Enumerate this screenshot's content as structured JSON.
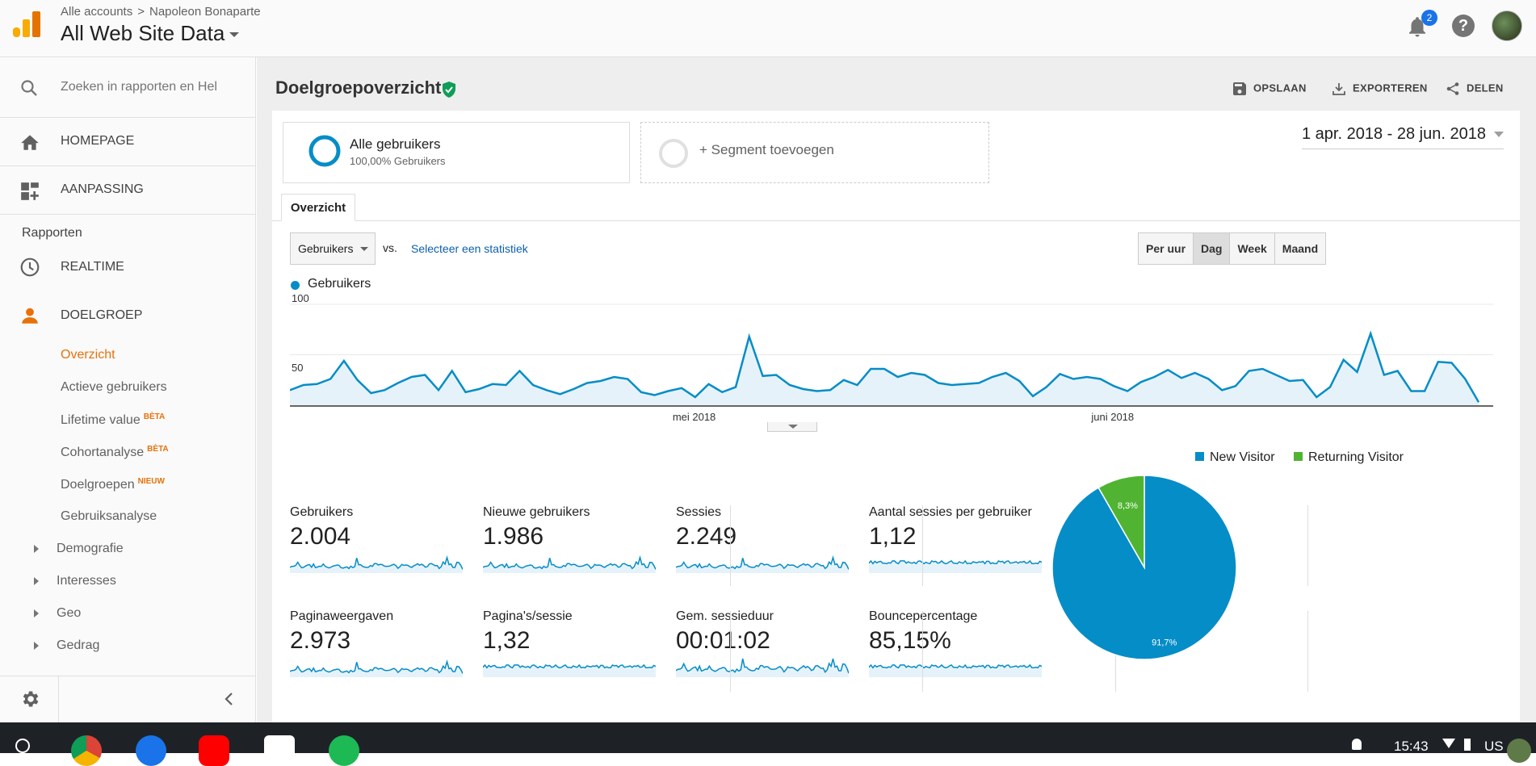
{
  "header": {
    "breadcrumb_accounts": "Alle accounts",
    "breadcrumb_separator": ">",
    "breadcrumb_property": "Napoleon Bonaparte",
    "view_name": "All Web Site Data",
    "notifications_count": "2"
  },
  "sidebar": {
    "search_placeholder": "Zoeken in rapporten en Hel",
    "homepage": "HOMEPAGE",
    "customization": "AANPASSING",
    "reports_label": "Rapporten",
    "realtime": "REALTIME",
    "audience": "DOELGROEP",
    "audience_items": [
      {
        "label": "Overzicht",
        "badge": ""
      },
      {
        "label": "Actieve gebruikers",
        "badge": ""
      },
      {
        "label": "Lifetime value",
        "badge": "BÈTA"
      },
      {
        "label": "Cohortanalyse",
        "badge": "BÈTA"
      },
      {
        "label": "Doelgroepen",
        "badge": "NIEUW"
      },
      {
        "label": "Gebruiksanalyse",
        "badge": ""
      }
    ],
    "expandable_items": [
      "Demografie",
      "Interesses",
      "Geo",
      "Gedrag"
    ]
  },
  "page": {
    "title": "Doelgroepoverzicht",
    "save": "OPSLAAN",
    "export": "EXPORTEREN",
    "share": "DELEN",
    "segment_name": "Alle gebruikers",
    "segment_share": "100,00% Gebruikers",
    "add_segment": "+ Segment toevoegen",
    "date_range": "1 apr. 2018 - 28 jun. 2018",
    "tab_overview": "Overzicht",
    "metric_select": "Gebruikers",
    "vs": "vs.",
    "select_statistic": "Selecteer een statistiek",
    "granularity": [
      "Per uur",
      "Dag",
      "Week",
      "Maand"
    ],
    "granularity_selected": "Dag"
  },
  "chart_data": {
    "type": "area",
    "series": [
      {
        "name": "Gebruikers",
        "color": "#058dc7",
        "values": [
          15,
          20,
          21,
          26,
          44,
          25,
          12,
          15,
          22,
          28,
          30,
          15,
          34,
          13,
          16,
          21,
          20,
          34,
          20,
          15,
          11,
          16,
          22,
          24,
          28,
          26,
          13,
          10,
          14,
          17,
          8,
          21,
          13,
          18,
          68,
          29,
          30,
          20,
          16,
          14,
          15,
          25,
          20,
          36,
          36,
          28,
          32,
          30,
          22,
          20,
          21,
          22,
          28,
          32,
          24,
          9,
          18,
          31,
          26,
          28,
          26,
          19,
          14,
          23,
          28,
          35,
          27,
          32,
          26,
          15,
          19,
          34,
          36,
          30,
          24,
          25,
          8,
          18,
          45,
          33,
          71,
          30,
          34,
          14,
          14,
          43,
          42,
          26,
          3
        ]
      }
    ],
    "x_labels": [
      {
        "label": "mei 2018",
        "index": 30
      },
      {
        "label": "juni 2018",
        "index": 61
      }
    ],
    "y_ticks": [
      50,
      100
    ],
    "ylim": [
      0,
      100
    ],
    "grid": true
  },
  "metrics": [
    {
      "label": "Gebruikers",
      "value": "2.004"
    },
    {
      "label": "Nieuwe gebruikers",
      "value": "1.986"
    },
    {
      "label": "Sessies",
      "value": "2.249"
    },
    {
      "label": "Aantal sessies per gebruiker",
      "value": "1,12"
    },
    {
      "label": "Paginaweergaven",
      "value": "2.973"
    },
    {
      "label": "Pagina's/sessie",
      "value": "1,32"
    },
    {
      "label": "Gem. sessieduur",
      "value": "00:01:02"
    },
    {
      "label": "Bouncepercentage",
      "value": "85,15%"
    }
  ],
  "pie_data": {
    "type": "pie",
    "slices": [
      {
        "label": "New Visitor",
        "value": 91.7,
        "text": "91,7%",
        "color": "#058dc7"
      },
      {
        "label": "Returning Visitor",
        "value": 8.3,
        "text": "8,3%",
        "color": "#50b432"
      }
    ]
  },
  "taskbar": {
    "time": "15:43",
    "locale": "US"
  }
}
